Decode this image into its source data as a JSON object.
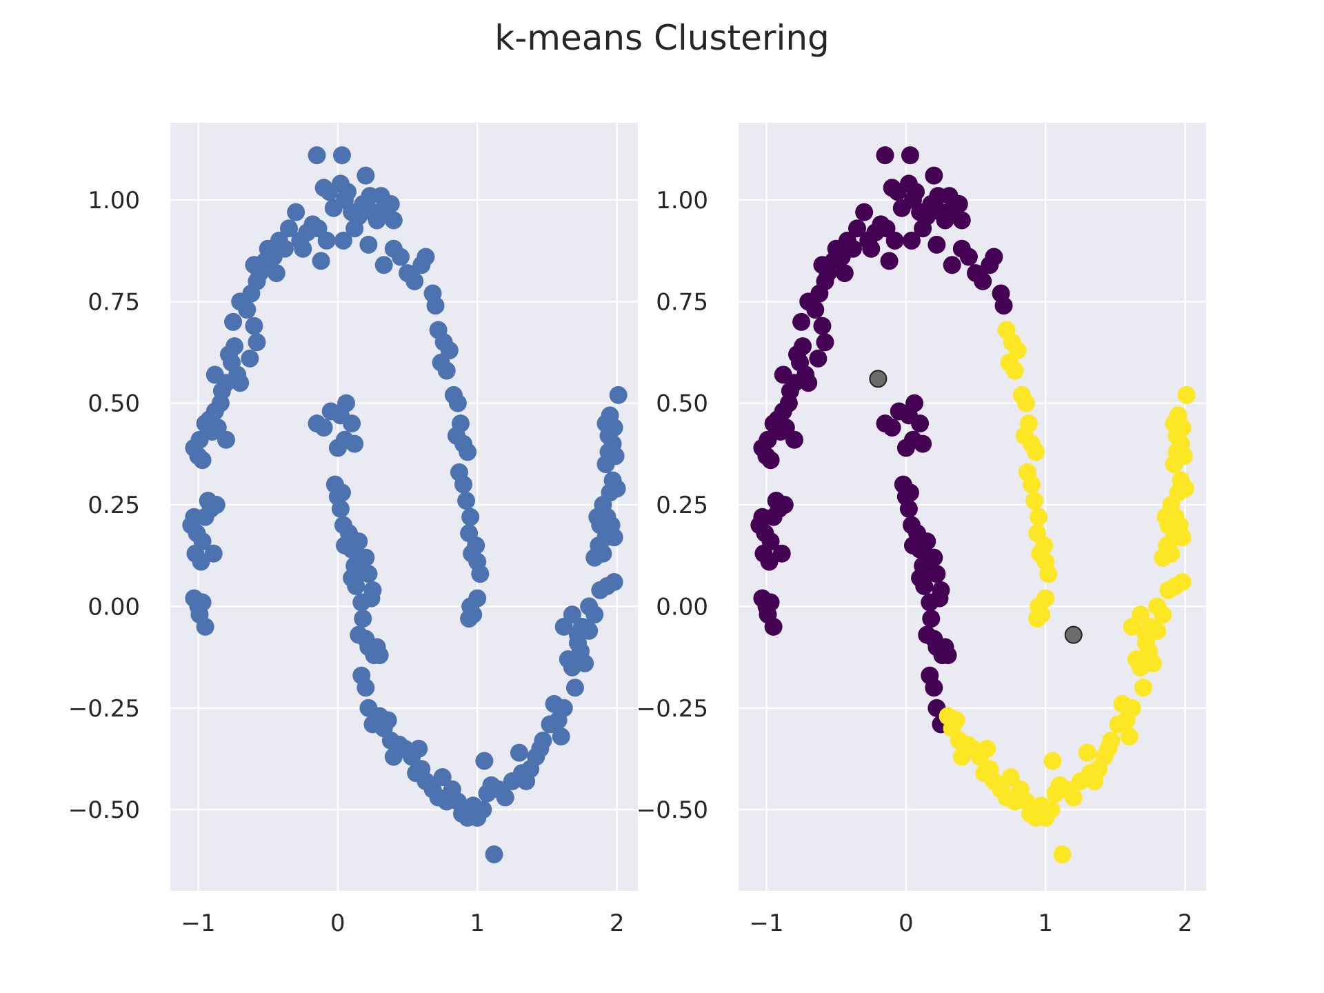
{
  "figure": {
    "title": "k-means Clustering"
  },
  "colors": {
    "panel_bg": "#eaeaf2",
    "grid": "#ffffff",
    "points": "#4c72b0",
    "cluster_0": "#440154",
    "cluster_1": "#fde725",
    "centers": "#555555",
    "text": "#262626"
  },
  "chart_data": [
    {
      "type": "scatter",
      "title": "",
      "xlabel": "",
      "ylabel": "",
      "xlim": [
        -1.2,
        2.15
      ],
      "ylim": [
        -0.7,
        1.19
      ],
      "xticks": [
        {
          "v": -1,
          "label": "−1"
        },
        {
          "v": 0,
          "label": "0"
        },
        {
          "v": 1,
          "label": "1"
        },
        {
          "v": 2,
          "label": "2"
        }
      ],
      "yticks": [
        {
          "v": -0.5,
          "label": "−0.50"
        },
        {
          "v": -0.25,
          "label": "−0.25"
        },
        {
          "v": 0,
          "label": "0.00"
        },
        {
          "v": 0.25,
          "label": "0.25"
        },
        {
          "v": 0.5,
          "label": "0.50"
        },
        {
          "v": 0.75,
          "label": "0.75"
        },
        {
          "v": 1.0,
          "label": "1.00"
        }
      ],
      "grid": true,
      "points": [
        [
          -1.05,
          0.2
        ],
        [
          -1.03,
          0.22
        ],
        [
          -1.01,
          0.18
        ],
        [
          -1.02,
          0.13
        ],
        [
          -0.98,
          0.11
        ],
        [
          -0.97,
          0.16
        ],
        [
          -0.95,
          0.22
        ],
        [
          -0.93,
          0.26
        ],
        [
          -0.91,
          0.24
        ],
        [
          -0.89,
          0.13
        ],
        [
          -0.87,
          0.25
        ],
        [
          -1.03,
          0.02
        ],
        [
          -1.0,
          0.0
        ],
        [
          -0.97,
          0.01
        ],
        [
          -0.99,
          -0.02
        ],
        [
          -0.95,
          -0.05
        ],
        [
          -1.03,
          0.39
        ],
        [
          -1.0,
          0.37
        ],
        [
          -0.97,
          0.36
        ],
        [
          -0.99,
          0.41
        ],
        [
          -0.95,
          0.45
        ],
        [
          -0.92,
          0.46
        ],
        [
          -0.9,
          0.43
        ],
        [
          -0.88,
          0.48
        ],
        [
          -0.86,
          0.44
        ],
        [
          -0.84,
          0.5
        ],
        [
          -0.8,
          0.41
        ],
        [
          -0.88,
          0.57
        ],
        [
          -0.83,
          0.53
        ],
        [
          -0.8,
          0.55
        ],
        [
          -0.78,
          0.62
        ],
        [
          -0.76,
          0.6
        ],
        [
          -0.74,
          0.64
        ],
        [
          -0.72,
          0.57
        ],
        [
          -0.7,
          0.55
        ],
        [
          -0.75,
          0.7
        ],
        [
          -0.7,
          0.75
        ],
        [
          -0.65,
          0.73
        ],
        [
          -0.63,
          0.61
        ],
        [
          -0.6,
          0.69
        ],
        [
          -0.58,
          0.65
        ],
        [
          -0.62,
          0.77
        ],
        [
          -0.58,
          0.8
        ],
        [
          -0.6,
          0.84
        ],
        [
          -0.56,
          0.82
        ],
        [
          -0.52,
          0.85
        ],
        [
          -0.5,
          0.88
        ],
        [
          -0.46,
          0.86
        ],
        [
          -0.44,
          0.82
        ],
        [
          -0.42,
          0.9
        ],
        [
          -0.38,
          0.88
        ],
        [
          -0.35,
          0.93
        ],
        [
          -0.3,
          0.97
        ],
        [
          -0.27,
          0.9
        ],
        [
          -0.25,
          0.88
        ],
        [
          -0.22,
          0.92
        ],
        [
          -0.18,
          0.94
        ],
        [
          -0.14,
          0.93
        ],
        [
          -0.12,
          0.85
        ],
        [
          -0.08,
          0.9
        ],
        [
          -0.1,
          1.03
        ],
        [
          -0.06,
          1.02
        ],
        [
          -0.03,
          0.98
        ],
        [
          0.02,
          1.04
        ],
        [
          0.05,
          1.0
        ],
        [
          0.07,
          1.02
        ],
        [
          0.1,
          0.97
        ],
        [
          0.12,
          0.93
        ],
        [
          0.15,
          0.96
        ],
        [
          0.18,
          0.99
        ],
        [
          0.2,
          1.06
        ],
        [
          0.23,
          1.01
        ],
        [
          0.25,
          0.97
        ],
        [
          0.28,
          0.95
        ],
        [
          0.31,
          1.01
        ],
        [
          0.34,
          0.98
        ],
        [
          0.38,
          0.99
        ],
        [
          0.4,
          0.95
        ],
        [
          -0.15,
          1.11
        ],
        [
          0.03,
          1.11
        ],
        [
          0.04,
          0.9
        ],
        [
          0.22,
          0.89
        ],
        [
          0.33,
          0.84
        ],
        [
          0.4,
          0.88
        ],
        [
          0.45,
          0.86
        ],
        [
          0.5,
          0.82
        ],
        [
          0.55,
          0.8
        ],
        [
          0.6,
          0.84
        ],
        [
          0.63,
          0.86
        ],
        [
          0.68,
          0.77
        ],
        [
          0.7,
          0.74
        ],
        [
          0.72,
          0.68
        ],
        [
          0.76,
          0.65
        ],
        [
          0.74,
          0.6
        ],
        [
          0.8,
          0.63
        ],
        [
          0.78,
          0.58
        ],
        [
          0.83,
          0.52
        ],
        [
          0.86,
          0.5
        ],
        [
          0.88,
          0.45
        ],
        [
          0.85,
          0.42
        ],
        [
          0.9,
          0.4
        ],
        [
          0.93,
          0.38
        ],
        [
          0.87,
          0.33
        ],
        [
          0.9,
          0.3
        ],
        [
          0.92,
          0.26
        ],
        [
          0.95,
          0.22
        ],
        [
          0.94,
          0.18
        ],
        [
          0.96,
          0.13
        ],
        [
          0.99,
          0.15
        ],
        [
          1.0,
          0.11
        ],
        [
          1.02,
          0.08
        ],
        [
          0.95,
          0.0
        ],
        [
          0.97,
          -0.02
        ],
        [
          0.94,
          -0.03
        ],
        [
          1.0,
          0.02
        ],
        [
          -0.15,
          0.45
        ],
        [
          -0.1,
          0.44
        ],
        [
          -0.05,
          0.48
        ],
        [
          0.02,
          0.47
        ],
        [
          0.06,
          0.5
        ],
        [
          0.1,
          0.45
        ],
        [
          0.0,
          0.39
        ],
        [
          0.05,
          0.41
        ],
        [
          0.12,
          0.4
        ],
        [
          -0.02,
          0.3
        ],
        [
          0.0,
          0.27
        ],
        [
          0.03,
          0.28
        ],
        [
          0.02,
          0.24
        ],
        [
          0.04,
          0.2
        ],
        [
          0.05,
          0.15
        ],
        [
          0.1,
          0.14
        ],
        [
          0.08,
          0.18
        ],
        [
          0.12,
          0.1
        ],
        [
          0.15,
          0.16
        ],
        [
          0.2,
          0.12
        ],
        [
          0.22,
          0.08
        ],
        [
          0.25,
          0.04
        ],
        [
          0.1,
          0.07
        ],
        [
          0.13,
          0.05
        ],
        [
          0.17,
          0.01
        ],
        [
          0.24,
          0.02
        ],
        [
          0.18,
          -0.03
        ],
        [
          0.15,
          -0.07
        ],
        [
          0.2,
          -0.08
        ],
        [
          0.22,
          -0.1
        ],
        [
          0.26,
          -0.12
        ],
        [
          0.28,
          -0.1
        ],
        [
          0.3,
          -0.12
        ],
        [
          0.17,
          -0.17
        ],
        [
          0.2,
          -0.2
        ],
        [
          0.22,
          -0.25
        ],
        [
          0.25,
          -0.29
        ],
        [
          0.3,
          -0.27
        ],
        [
          0.33,
          -0.3
        ],
        [
          0.36,
          -0.28
        ],
        [
          0.38,
          -0.33
        ],
        [
          0.4,
          -0.37
        ],
        [
          0.44,
          -0.34
        ],
        [
          0.48,
          -0.35
        ],
        [
          0.53,
          -0.37
        ],
        [
          0.56,
          -0.41
        ],
        [
          0.58,
          -0.35
        ],
        [
          0.6,
          -0.4
        ],
        [
          0.63,
          -0.43
        ],
        [
          0.68,
          -0.45
        ],
        [
          0.72,
          -0.47
        ],
        [
          0.75,
          -0.42
        ],
        [
          0.78,
          -0.48
        ],
        [
          0.82,
          -0.45
        ],
        [
          0.86,
          -0.48
        ],
        [
          0.89,
          -0.51
        ],
        [
          0.93,
          -0.52
        ],
        [
          0.97,
          -0.49
        ],
        [
          1.0,
          -0.52
        ],
        [
          1.04,
          -0.5
        ],
        [
          1.07,
          -0.46
        ],
        [
          1.1,
          -0.44
        ],
        [
          1.05,
          -0.38
        ],
        [
          1.12,
          -0.61
        ],
        [
          1.15,
          -0.45
        ],
        [
          1.2,
          -0.47
        ],
        [
          1.25,
          -0.43
        ],
        [
          1.3,
          -0.36
        ],
        [
          1.32,
          -0.41
        ],
        [
          1.35,
          -0.43
        ],
        [
          1.38,
          -0.4
        ],
        [
          1.42,
          -0.37
        ],
        [
          1.45,
          -0.35
        ],
        [
          1.47,
          -0.33
        ],
        [
          1.52,
          -0.29
        ],
        [
          1.55,
          -0.24
        ],
        [
          1.58,
          -0.28
        ],
        [
          1.6,
          -0.32
        ],
        [
          1.62,
          -0.25
        ],
        [
          1.65,
          -0.13
        ],
        [
          1.68,
          -0.15
        ],
        [
          1.7,
          -0.2
        ],
        [
          1.72,
          -0.09
        ],
        [
          1.74,
          -0.11
        ],
        [
          1.77,
          -0.14
        ],
        [
          1.8,
          -0.06
        ],
        [
          1.62,
          -0.05
        ],
        [
          1.68,
          -0.02
        ],
        [
          1.72,
          -0.07
        ],
        [
          1.75,
          -0.05
        ],
        [
          1.8,
          0.0
        ],
        [
          1.84,
          -0.02
        ],
        [
          1.88,
          0.04
        ],
        [
          1.93,
          0.05
        ],
        [
          1.98,
          0.06
        ],
        [
          1.84,
          0.12
        ],
        [
          1.87,
          0.15
        ],
        [
          1.9,
          0.13
        ],
        [
          1.92,
          0.17
        ],
        [
          1.86,
          0.22
        ],
        [
          1.88,
          0.2
        ],
        [
          1.9,
          0.25
        ],
        [
          1.93,
          0.22
        ],
        [
          1.96,
          0.2
        ],
        [
          1.98,
          0.17
        ],
        [
          1.95,
          0.28
        ],
        [
          1.97,
          0.31
        ],
        [
          2.0,
          0.29
        ],
        [
          1.92,
          0.35
        ],
        [
          1.94,
          0.38
        ],
        [
          1.97,
          0.4
        ],
        [
          1.99,
          0.37
        ],
        [
          1.92,
          0.45
        ],
        [
          1.95,
          0.47
        ],
        [
          1.98,
          0.44
        ],
        [
          2.01,
          0.52
        ],
        [
          1.94,
          0.42
        ]
      ]
    },
    {
      "type": "scatter",
      "title": "",
      "xlabel": "",
      "ylabel": "",
      "xlim": [
        -1.2,
        2.15
      ],
      "ylim": [
        -0.7,
        1.19
      ],
      "xticks": [
        {
          "v": -1,
          "label": "−1"
        },
        {
          "v": 0,
          "label": "0"
        },
        {
          "v": 1,
          "label": "1"
        },
        {
          "v": 2,
          "label": "2"
        }
      ],
      "yticks": [
        {
          "v": -0.5,
          "label": "−0.50"
        },
        {
          "v": -0.25,
          "label": "−0.25"
        },
        {
          "v": 0,
          "label": "0.00"
        },
        {
          "v": 0.25,
          "label": "0.25"
        },
        {
          "v": 0.5,
          "label": "0.50"
        },
        {
          "v": 0.75,
          "label": "0.75"
        },
        {
          "v": 1.0,
          "label": "1.00"
        }
      ],
      "grid": true,
      "cluster_boundary_note_hidden": true,
      "centers": [
        [
          -0.2,
          0.56
        ],
        [
          1.2,
          -0.07
        ]
      ]
    }
  ]
}
